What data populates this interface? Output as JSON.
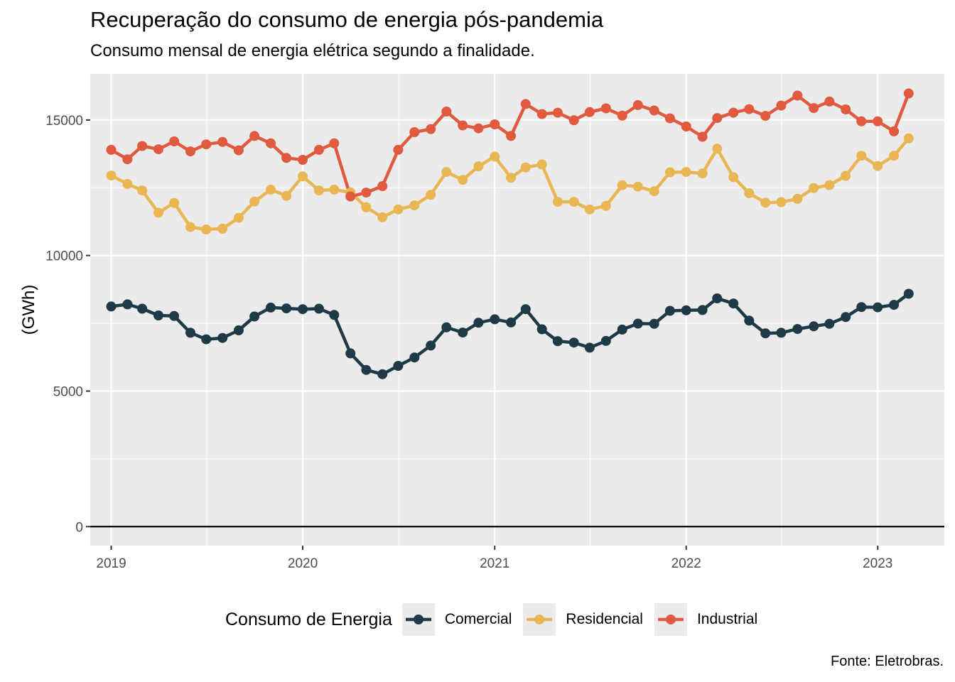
{
  "chart_data": {
    "type": "line",
    "title": "Recuperação do consumo de energia pós-pandemia",
    "subtitle": "Consumo mensal de energia elétrica segundo a finalidade.",
    "caption": "Fonte: Eletrobras.",
    "xlabel": "",
    "ylabel": "(GWh)",
    "ylim": [
      -700,
      16700
    ],
    "y_ticks": [
      0,
      5000,
      10000,
      15000
    ],
    "x_ticks": [
      "2019",
      "2020",
      "2021",
      "2022",
      "2023"
    ],
    "x_range": [
      "2018-11-22",
      "2023-05-08"
    ],
    "legend": {
      "title": "Consumo de Energia",
      "position": "bottom"
    },
    "grid": true,
    "x": [
      "2019-01",
      "2019-02",
      "2019-03",
      "2019-04",
      "2019-05",
      "2019-06",
      "2019-07",
      "2019-08",
      "2019-09",
      "2019-10",
      "2019-11",
      "2019-12",
      "2020-01",
      "2020-02",
      "2020-03",
      "2020-04",
      "2020-05",
      "2020-06",
      "2020-07",
      "2020-08",
      "2020-09",
      "2020-10",
      "2020-11",
      "2020-12",
      "2021-01",
      "2021-02",
      "2021-03",
      "2021-04",
      "2021-05",
      "2021-06",
      "2021-07",
      "2021-08",
      "2021-09",
      "2021-10",
      "2021-11",
      "2021-12",
      "2022-01",
      "2022-02",
      "2022-03",
      "2022-04",
      "2022-05",
      "2022-06",
      "2022-07",
      "2022-08",
      "2022-09",
      "2022-10",
      "2022-11",
      "2022-12",
      "2023-01",
      "2023-02",
      "2023-03"
    ],
    "series": [
      {
        "name": "Comercial",
        "color": "#1f3a47",
        "values": [
          8120,
          8200,
          8040,
          7790,
          7770,
          7150,
          6910,
          6960,
          7240,
          7750,
          8080,
          8050,
          8020,
          8040,
          7810,
          6390,
          5780,
          5620,
          5930,
          6240,
          6680,
          7350,
          7160,
          7520,
          7650,
          7530,
          8020,
          7280,
          6840,
          6790,
          6600,
          6850,
          7270,
          7490,
          7480,
          7960,
          7980,
          7990,
          8420,
          8230,
          7600,
          7130,
          7150,
          7290,
          7390,
          7480,
          7730,
          8100,
          8090,
          8180,
          8590
        ]
      },
      {
        "name": "Residencial",
        "color": "#e9b654",
        "values": [
          12950,
          12640,
          12400,
          11580,
          11940,
          11050,
          10960,
          10990,
          11390,
          11990,
          12430,
          12200,
          12920,
          12400,
          12430,
          12330,
          11780,
          11410,
          11700,
          11850,
          12240,
          13080,
          12790,
          13290,
          13650,
          12870,
          13250,
          13360,
          11980,
          11980,
          11700,
          11830,
          12590,
          12540,
          12370,
          13070,
          13080,
          13030,
          13940,
          12890,
          12300,
          11950,
          11970,
          12090,
          12490,
          12600,
          12940,
          13680,
          13300,
          13680,
          14320
        ]
      },
      {
        "name": "Industrial",
        "color": "#e05a3f",
        "values": [
          13900,
          13550,
          14040,
          13920,
          14210,
          13840,
          14100,
          14190,
          13880,
          14410,
          14140,
          13600,
          13530,
          13900,
          14140,
          12180,
          12320,
          12560,
          13900,
          14550,
          14660,
          15310,
          14800,
          14690,
          14840,
          14410,
          15590,
          15220,
          15270,
          14990,
          15290,
          15430,
          15160,
          15550,
          15350,
          15060,
          14760,
          14380,
          15070,
          15270,
          15400,
          15150,
          15530,
          15900,
          15440,
          15680,
          15390,
          14950,
          14950,
          14580,
          15980
        ]
      }
    ]
  }
}
